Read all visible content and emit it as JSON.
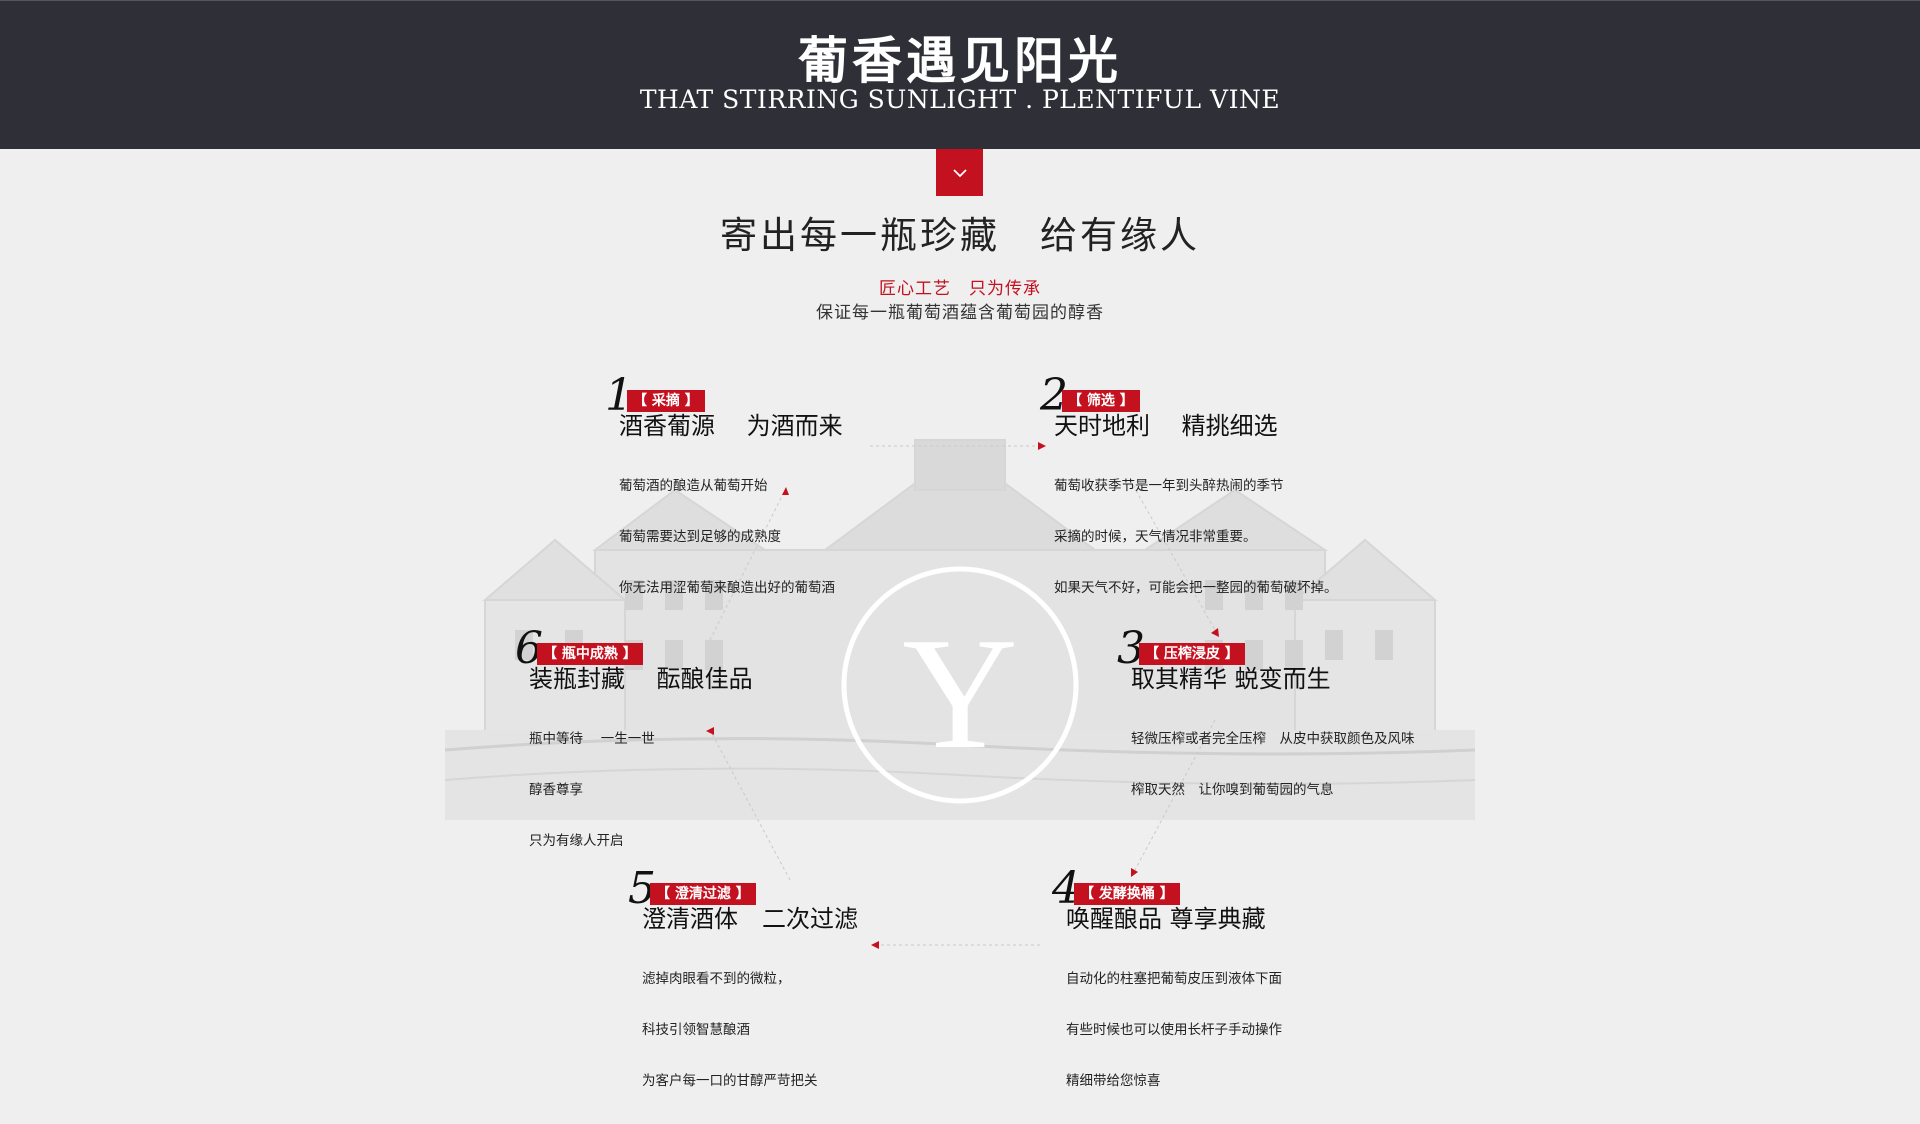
{
  "banner": {
    "title": "葡香遇见阳光",
    "subtitle": "THAT STIRRING SUNLIGHT . PLENTIFUL VINE"
  },
  "scroll_button": {
    "icon": "chevron-down-icon"
  },
  "headline": "寄出每一瓶珍藏　给有缘人",
  "tagline_red": "匠心工艺　只为传承",
  "tagline_grey": "保证每一瓶葡萄酒蕴含葡萄园的醇香",
  "logo_letter": "Y",
  "colors": {
    "accent": "#c4111f",
    "banner": "#2f2f37",
    "background": "#efefef"
  },
  "steps": [
    {
      "num": "1",
      "tag": "【 采摘 】",
      "title": "酒香葡源　 为酒而来",
      "lines": [
        "葡萄酒的酿造从葡萄开始",
        "葡萄需要达到足够的成熟度",
        "你无法用涩葡萄来酿造出好的葡萄酒"
      ]
    },
    {
      "num": "2",
      "tag": "【 筛选 】",
      "title": "天时地利　 精挑细选",
      "lines": [
        "葡萄收获季节是一年到头醉热闹的季节",
        "采摘的时候，天气情况非常重要。",
        "如果天气不好，可能会把一整园的葡萄破坏掉。"
      ]
    },
    {
      "num": "3",
      "tag": "【 压榨浸皮 】",
      "title": "取其精华 蜕变而生",
      "lines": [
        "轻微压榨或者完全压榨　从皮中获取颜色及风味",
        "榨取天然　让你嗅到葡萄园的气息"
      ]
    },
    {
      "num": "4",
      "tag": "【 发酵换桶 】",
      "title": "唤醒酿品 尊享典藏",
      "lines": [
        "自动化的柱塞把葡萄皮压到液体下面",
        "有些时候也可以使用长杆子手动操作",
        "精细带给您惊喜"
      ]
    },
    {
      "num": "5",
      "tag": "【 澄清过滤 】",
      "title": "澄清酒体　二次过滤",
      "lines": [
        "滤掉肉眼看不到的微粒，",
        "科技引领智慧酿酒",
        "为客户每一口的甘醇严苛把关"
      ]
    },
    {
      "num": "6",
      "tag": "【 瓶中成熟 】",
      "title": "装瓶封藏　 酝酿佳品",
      "lines": [
        "瓶中等待　 一生一世",
        "醇香尊享",
        "只为有缘人开启"
      ]
    }
  ]
}
